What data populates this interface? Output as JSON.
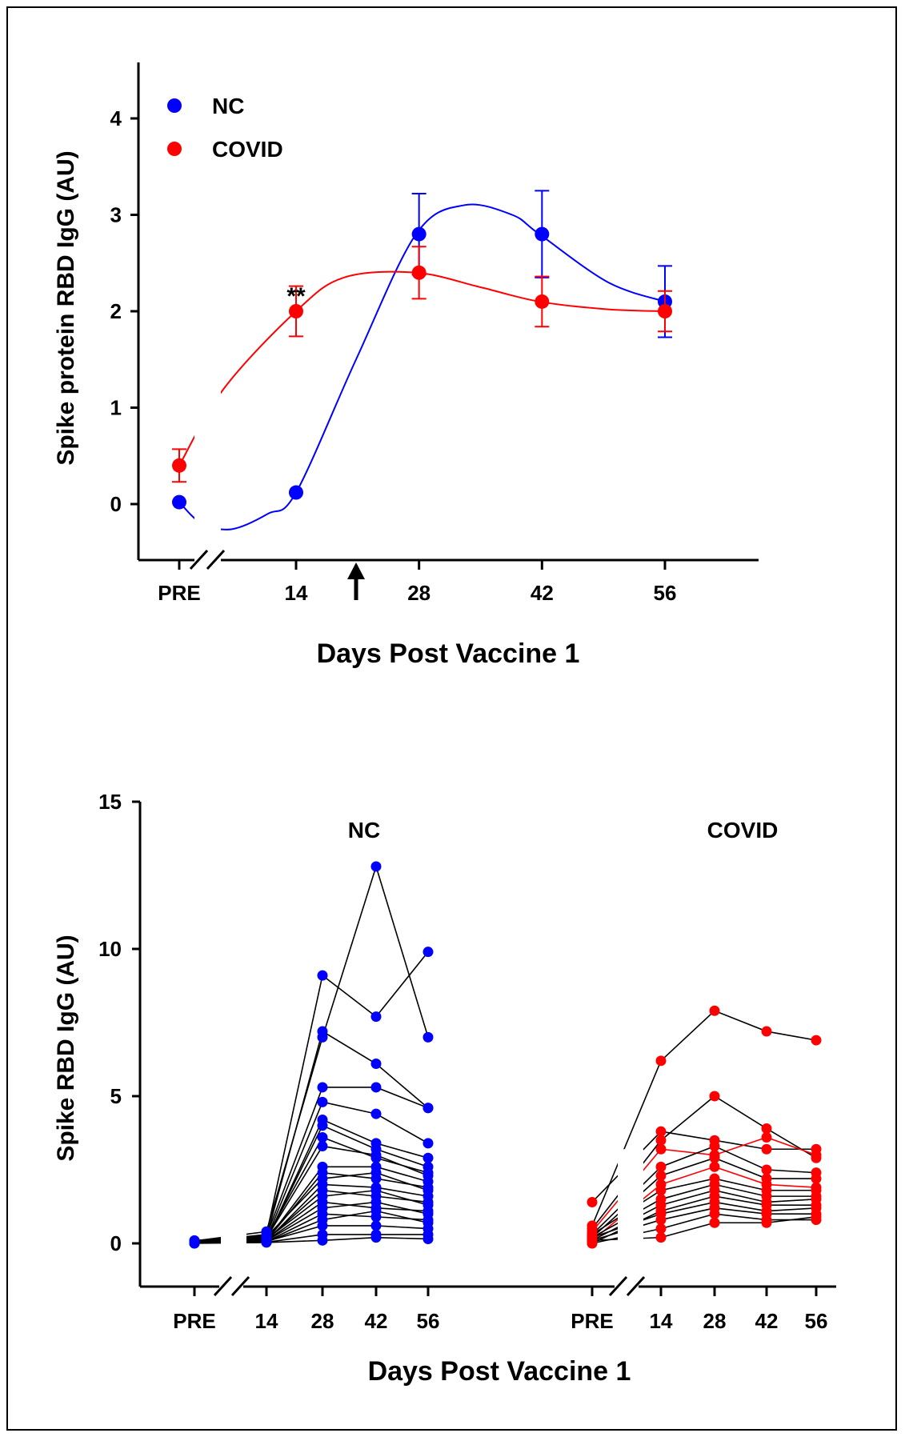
{
  "chart_data": [
    {
      "type": "line",
      "ylabel": "Spike protein RBD IgG (AU)",
      "xlabel": "Days Post Vaccine 1",
      "categories": [
        "PRE",
        "14",
        "28",
        "42",
        "56"
      ],
      "x": [
        0,
        14,
        28,
        42,
        56
      ],
      "ylim": [
        -0.5,
        4
      ],
      "yticks": [
        0,
        1,
        2,
        3,
        4
      ],
      "legend": "top-left",
      "annotations": [
        {
          "text": "**",
          "x": 14,
          "y": 2.2
        }
      ],
      "arrow_at_day": 21,
      "series": [
        {
          "name": "NC",
          "color": "#0000ff",
          "values": [
            0.02,
            0.12,
            2.8,
            2.8,
            2.1
          ],
          "err": [
            0,
            0,
            0.42,
            0.45,
            0.37
          ]
        },
        {
          "name": "COVID",
          "color": "#ff0000",
          "values": [
            0.4,
            2.0,
            2.4,
            2.1,
            2.0
          ],
          "err": [
            0.17,
            0.26,
            0.27,
            0.26,
            0.21
          ]
        }
      ]
    },
    {
      "type": "line",
      "ylabel": "Spike RBD IgG (AU)",
      "xlabel": "Days Post Vaccine 1",
      "ylim": [
        -1.5,
        15
      ],
      "yticks": [
        0,
        5,
        10,
        15
      ],
      "panels": [
        {
          "title": "NC",
          "color": "#0000ff",
          "categories": [
            "PRE",
            "14",
            "28",
            "42",
            "56"
          ],
          "subjects": [
            [
              0.05,
              0.3,
              9.1,
              7.7,
              9.9
            ],
            [
              0.08,
              0.4,
              7.0,
              12.8,
              7.0
            ],
            [
              0.02,
              0.2,
              7.2,
              6.1,
              4.6
            ],
            [
              0.1,
              0.25,
              5.3,
              5.3,
              4.6
            ],
            [
              0.03,
              0.15,
              4.8,
              4.4,
              3.4
            ],
            [
              0.0,
              0.1,
              4.2,
              3.4,
              2.9
            ],
            [
              0.05,
              0.12,
              4.0,
              3.2,
              2.6
            ],
            [
              0.04,
              0.2,
              3.6,
              2.9,
              2.4
            ],
            [
              0.06,
              0.18,
              3.3,
              3.0,
              2.3
            ],
            [
              0.02,
              0.1,
              2.6,
              2.6,
              2.1
            ],
            [
              0.03,
              0.1,
              2.4,
              2.2,
              1.9
            ],
            [
              0.05,
              0.22,
              2.2,
              2.4,
              1.8
            ],
            [
              0.01,
              0.08,
              2.0,
              1.9,
              1.6
            ],
            [
              0.02,
              0.12,
              1.8,
              1.6,
              1.4
            ],
            [
              0.03,
              0.14,
              1.6,
              1.8,
              1.3
            ],
            [
              0.04,
              0.1,
              1.4,
              1.2,
              1.1
            ],
            [
              0.02,
              0.09,
              1.2,
              1.4,
              1.0
            ],
            [
              0.01,
              0.06,
              1.0,
              0.9,
              0.8
            ],
            [
              0.02,
              0.05,
              0.8,
              1.1,
              0.7
            ],
            [
              0.03,
              0.07,
              0.6,
              0.6,
              0.5
            ],
            [
              0.01,
              0.04,
              0.3,
              0.3,
              0.3
            ],
            [
              0.0,
              0.03,
              0.1,
              0.2,
              0.15
            ]
          ]
        },
        {
          "title": "COVID",
          "color": "#ff0000",
          "categories": [
            "PRE",
            "14",
            "28",
            "42",
            "56"
          ],
          "subjects": [
            [
              0.6,
              6.2,
              7.9,
              7.2,
              6.9
            ],
            [
              1.4,
              3.8,
              3.5,
              3.2,
              3.2
            ],
            [
              0.5,
              3.5,
              5.0,
              3.9,
              2.9
            ],
            [
              0.4,
              3.2,
              3.0,
              3.6,
              3.0
            ],
            [
              0.3,
              2.6,
              3.3,
              2.5,
              2.4
            ],
            [
              0.2,
              2.3,
              2.9,
              2.2,
              2.2
            ],
            [
              0.1,
              2.0,
              2.6,
              2.0,
              1.9
            ],
            [
              0.3,
              1.8,
              2.2,
              1.8,
              1.8
            ],
            [
              0.2,
              1.5,
              2.0,
              1.6,
              1.6
            ],
            [
              0.1,
              1.3,
              1.8,
              1.4,
              1.5
            ],
            [
              0.0,
              1.1,
              1.6,
              1.3,
              1.3
            ],
            [
              0.2,
              1.0,
              1.4,
              1.1,
              1.2
            ],
            [
              0.1,
              0.8,
              1.2,
              1.0,
              1.0
            ],
            [
              0.0,
              0.5,
              1.0,
              0.8,
              0.8
            ],
            [
              0.1,
              0.2,
              0.7,
              0.7,
              0.9
            ]
          ]
        }
      ]
    }
  ]
}
